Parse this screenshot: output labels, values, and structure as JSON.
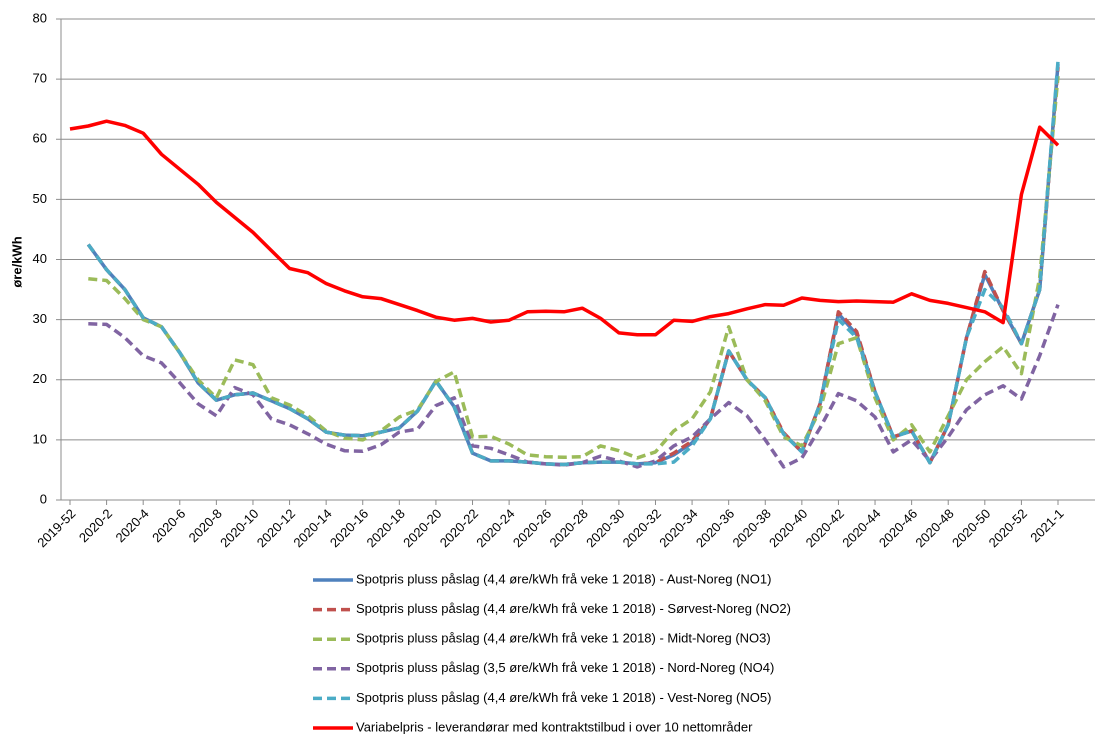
{
  "chart_data": {
    "type": "line",
    "ylabel": "øre/kWh",
    "categories": [
      "2019-52",
      null,
      "2020-2",
      null,
      "2020-4",
      null,
      "2020-6",
      null,
      "2020-8",
      null,
      "2020-10",
      null,
      "2020-12",
      null,
      "2020-14",
      null,
      "2020-16",
      null,
      "2020-18",
      null,
      "2020-20",
      null,
      "2020-22",
      null,
      "2020-24",
      null,
      "2020-26",
      null,
      "2020-28",
      null,
      "2020-30",
      null,
      "2020-32",
      null,
      "2020-34",
      null,
      "2020-36",
      null,
      "2020-38",
      null,
      "2020-40",
      null,
      "2020-42",
      null,
      "2020-44",
      null,
      "2020-46",
      null,
      "2020-48",
      null,
      "2020-50",
      null,
      "2020-52",
      null,
      "2021-1"
    ],
    "ylim": [
      0,
      80
    ],
    "yticks": [
      0,
      10,
      20,
      30,
      40,
      50,
      60,
      70,
      80
    ],
    "grid": true,
    "series": [
      {
        "name": "Spotpris pluss påslag (4,4 øre/kWh frå veke 1 2018) - Aust-Noreg (NO1)",
        "color": "#4f81bd",
        "dashed": false,
        "values": [
          null,
          42.5,
          38.3,
          35.0,
          30.3,
          28.8,
          24.5,
          19.5,
          16.6,
          17.5,
          17.8,
          16.5,
          15.2,
          13.5,
          11.3,
          10.8,
          10.7,
          11.3,
          12.0,
          14.8,
          19.8,
          15.5,
          7.8,
          6.5,
          6.5,
          6.3,
          6.0,
          5.9,
          6.2,
          6.3,
          6.3,
          6.0,
          6.2,
          7.5,
          9.5,
          13.5,
          24.8,
          20.0,
          17.0,
          11.0,
          8.0,
          16.0,
          31.0,
          27.5,
          18.0,
          10.5,
          11.5,
          6.2,
          12.5,
          27.0,
          37.5,
          31.5,
          26.0,
          35.0,
          72.5
        ]
      },
      {
        "name": "Spotpris pluss påslag (4,4 øre/kWh frå veke 1 2018) - Sørvest-Noreg (NO2)",
        "color": "#c0504d",
        "dashed": true,
        "values": [
          null,
          42.5,
          38.3,
          35.0,
          30.3,
          28.8,
          24.5,
          19.5,
          16.6,
          17.5,
          17.8,
          16.5,
          15.2,
          13.5,
          11.3,
          10.8,
          10.7,
          11.3,
          12.0,
          14.8,
          19.8,
          15.5,
          7.8,
          6.5,
          6.5,
          6.3,
          6.0,
          5.9,
          6.2,
          6.3,
          6.3,
          6.0,
          6.2,
          7.8,
          9.8,
          13.5,
          24.8,
          20.0,
          17.0,
          11.2,
          8.0,
          16.0,
          31.3,
          28.0,
          18.0,
          10.5,
          11.5,
          6.2,
          12.5,
          27.0,
          38.0,
          31.5,
          26.0,
          35.0,
          72.0
        ]
      },
      {
        "name": "Spotpris pluss påslag (4,4 øre/kWh frå veke 1 2018) - Midt-Noreg (NO3)",
        "color": "#9bbb59",
        "dashed": true,
        "values": [
          null,
          36.8,
          36.5,
          33.5,
          30.0,
          28.8,
          24.5,
          20.0,
          17.0,
          23.3,
          22.5,
          17.0,
          15.8,
          14.0,
          11.5,
          10.3,
          10.0,
          11.5,
          13.8,
          15.0,
          19.7,
          21.3,
          10.5,
          10.6,
          9.3,
          7.5,
          7.2,
          7.1,
          7.2,
          9.0,
          8.2,
          7.0,
          8.0,
          11.5,
          13.5,
          18.0,
          28.8,
          20.0,
          16.5,
          10.5,
          9.0,
          15.0,
          26.0,
          27.0,
          17.0,
          10.0,
          12.5,
          8.0,
          14.0,
          20.0,
          23.0,
          25.5,
          21.0,
          37.0,
          70.5
        ]
      },
      {
        "name": "Spotpris pluss påslag (3,5 øre/kWh frå veke 1 2018) - Nord-Noreg (NO4)",
        "color": "#8064a2",
        "dashed": true,
        "values": [
          null,
          29.3,
          29.2,
          27.0,
          24.0,
          22.8,
          19.5,
          16.0,
          14.0,
          18.7,
          17.5,
          13.5,
          12.5,
          11.0,
          9.3,
          8.2,
          8.1,
          9.2,
          11.3,
          11.8,
          15.7,
          17.0,
          9.0,
          8.6,
          7.5,
          6.3,
          6.0,
          5.8,
          6.2,
          7.3,
          6.5,
          5.5,
          6.5,
          9.0,
          10.5,
          13.5,
          16.2,
          14.0,
          10.0,
          5.5,
          7.0,
          12.0,
          17.7,
          16.5,
          13.8,
          8.0,
          10.0,
          6.5,
          10.5,
          15.0,
          17.5,
          19.0,
          16.8,
          24.0,
          32.5
        ]
      },
      {
        "name": "Spotpris pluss påslag (4,4 øre/kWh frå veke 1 2018) - Vest-Noreg (NO5)",
        "color": "#4bacc6",
        "dashed": true,
        "values": [
          null,
          42.5,
          38.3,
          35.0,
          30.3,
          28.8,
          24.5,
          19.5,
          16.6,
          17.5,
          17.8,
          16.5,
          15.2,
          13.5,
          11.3,
          10.8,
          10.7,
          11.3,
          12.0,
          14.8,
          19.8,
          15.5,
          7.8,
          6.5,
          6.5,
          6.3,
          6.0,
          5.9,
          6.2,
          6.3,
          6.3,
          6.0,
          6.0,
          6.3,
          9.0,
          13.5,
          24.8,
          20.0,
          17.0,
          11.0,
          8.0,
          16.0,
          30.0,
          27.0,
          18.0,
          10.5,
          11.5,
          6.2,
          12.5,
          27.0,
          35.0,
          32.0,
          26.0,
          35.0,
          73.0
        ]
      },
      {
        "name": "Variabelpris - leverandørar med kontraktstilbud i over 10 nettområder",
        "color": "#ff0000",
        "dashed": false,
        "values": [
          61.7,
          62.2,
          63.0,
          62.3,
          61.0,
          57.5,
          55.0,
          52.5,
          49.5,
          47.0,
          44.5,
          41.5,
          38.5,
          37.8,
          36.0,
          34.8,
          33.8,
          33.5,
          32.5,
          31.5,
          30.4,
          29.9,
          30.2,
          29.6,
          29.9,
          31.3,
          31.4,
          31.3,
          31.9,
          30.2,
          27.8,
          27.5,
          27.5,
          29.9,
          29.7,
          30.5,
          31.0,
          31.8,
          32.5,
          32.4,
          33.6,
          33.2,
          33.0,
          33.1,
          33.0,
          32.9,
          34.3,
          33.2,
          32.7,
          32.0,
          31.3,
          29.5,
          50.8,
          62.0,
          59.0
        ]
      }
    ]
  }
}
